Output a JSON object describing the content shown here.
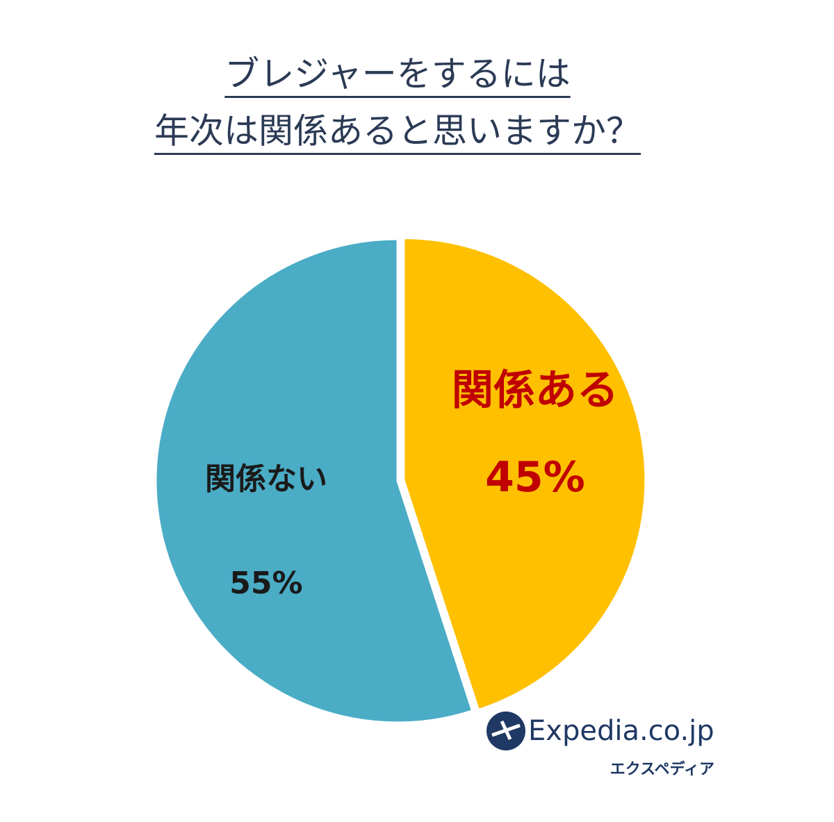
{
  "chart_data": {
    "type": "pie",
    "title": [
      "ブレジャーをするには",
      "年次は関係あると思いますか？"
    ],
    "categories": [
      "関係ある",
      "関係ない"
    ],
    "values": [
      45,
      55
    ],
    "value_labels": [
      "45%",
      "55%"
    ],
    "colors": [
      "#ffc000",
      "#4bacc6"
    ],
    "label_colors": [
      "#c00000",
      "#1a1a1a"
    ]
  },
  "logo": {
    "name": "Expedia.co.jp",
    "subtitle": "エクスペディア"
  }
}
